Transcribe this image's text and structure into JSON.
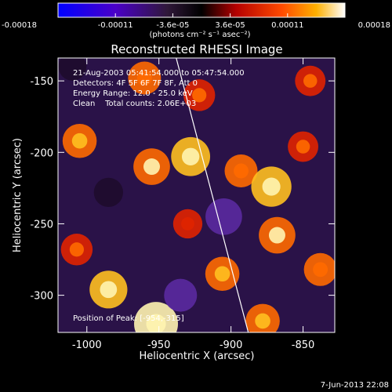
{
  "chart_data": {
    "type": "heatmap",
    "title": "Reconstructed RHESSI Image",
    "xlabel": "Heliocentric X (arcsec)",
    "ylabel": "Heliocentric Y (arcsec)",
    "xlim": [
      -1020,
      -828
    ],
    "ylim": [
      -326,
      -134
    ],
    "x_ticks": [
      -1000,
      -950,
      -900,
      -850
    ],
    "x_tick_labels": [
      "-1000",
      "-950",
      "-900",
      "-850"
    ],
    "y_ticks": [
      -150,
      -200,
      -250,
      -300
    ],
    "y_tick_labels": [
      "-150",
      "-200",
      "-250",
      "-300"
    ],
    "colorbar": {
      "range": [
        -0.00018,
        0.00018
      ],
      "ticks": [
        "-0.00018",
        "-0.00011",
        "-3.6e-05",
        "3.6e-05",
        "0.00011",
        "0.00018"
      ],
      "label": "(photons cm⁻² s⁻¹ asec⁻²)",
      "colormap": "blue-purple-black-red-orange-yellow-white"
    },
    "annotations": [
      "21-Aug-2003 05:41:54.000 to 05:47:54.000",
      "Detectors: 4F 5F 6F 7F 8F, Att 0",
      "Energy Range: 12.0 - 25.0 keV",
      "Clean    Total counts: 2.06E+03"
    ],
    "peak_label": "Position of Peak: [-954,-315]",
    "limb_line": [
      [
        -938,
        -134
      ],
      [
        -888,
        -326
      ]
    ],
    "sources": [
      {
        "x": -952,
        "y": -320,
        "value": 0.00018
      },
      {
        "x": -985,
        "y": -296,
        "value": 0.00013
      },
      {
        "x": -960,
        "y": -148,
        "value": 9e-05
      },
      {
        "x": -1005,
        "y": -192,
        "value": 0.0001
      },
      {
        "x": -955,
        "y": -210,
        "value": 0.00012
      },
      {
        "x": -928,
        "y": -203,
        "value": 0.00014
      },
      {
        "x": -893,
        "y": -213,
        "value": 9e-05
      },
      {
        "x": -872,
        "y": -224,
        "value": 0.00015
      },
      {
        "x": -850,
        "y": -196,
        "value": 7e-05
      },
      {
        "x": -906,
        "y": -285,
        "value": 0.0001
      },
      {
        "x": -868,
        "y": -258,
        "value": 0.00012
      },
      {
        "x": -838,
        "y": -282,
        "value": 9e-05
      },
      {
        "x": -1007,
        "y": -268,
        "value": 8e-05
      },
      {
        "x": -878,
        "y": -318,
        "value": 0.0001
      },
      {
        "x": -922,
        "y": -160,
        "value": 8e-05
      },
      {
        "x": -845,
        "y": -150,
        "value": 7e-05
      },
      {
        "x": -930,
        "y": -250,
        "value": 6e-05
      },
      {
        "x": -985,
        "y": -228,
        "value": -6e-05
      },
      {
        "x": -905,
        "y": -245,
        "value": -0.00012
      },
      {
        "x": -935,
        "y": -300,
        "value": -9e-05
      },
      {
        "x": -1010,
        "y": -140,
        "value": -5e-05
      }
    ]
  },
  "footer": {
    "date": "7-Jun-2013 22:08"
  }
}
